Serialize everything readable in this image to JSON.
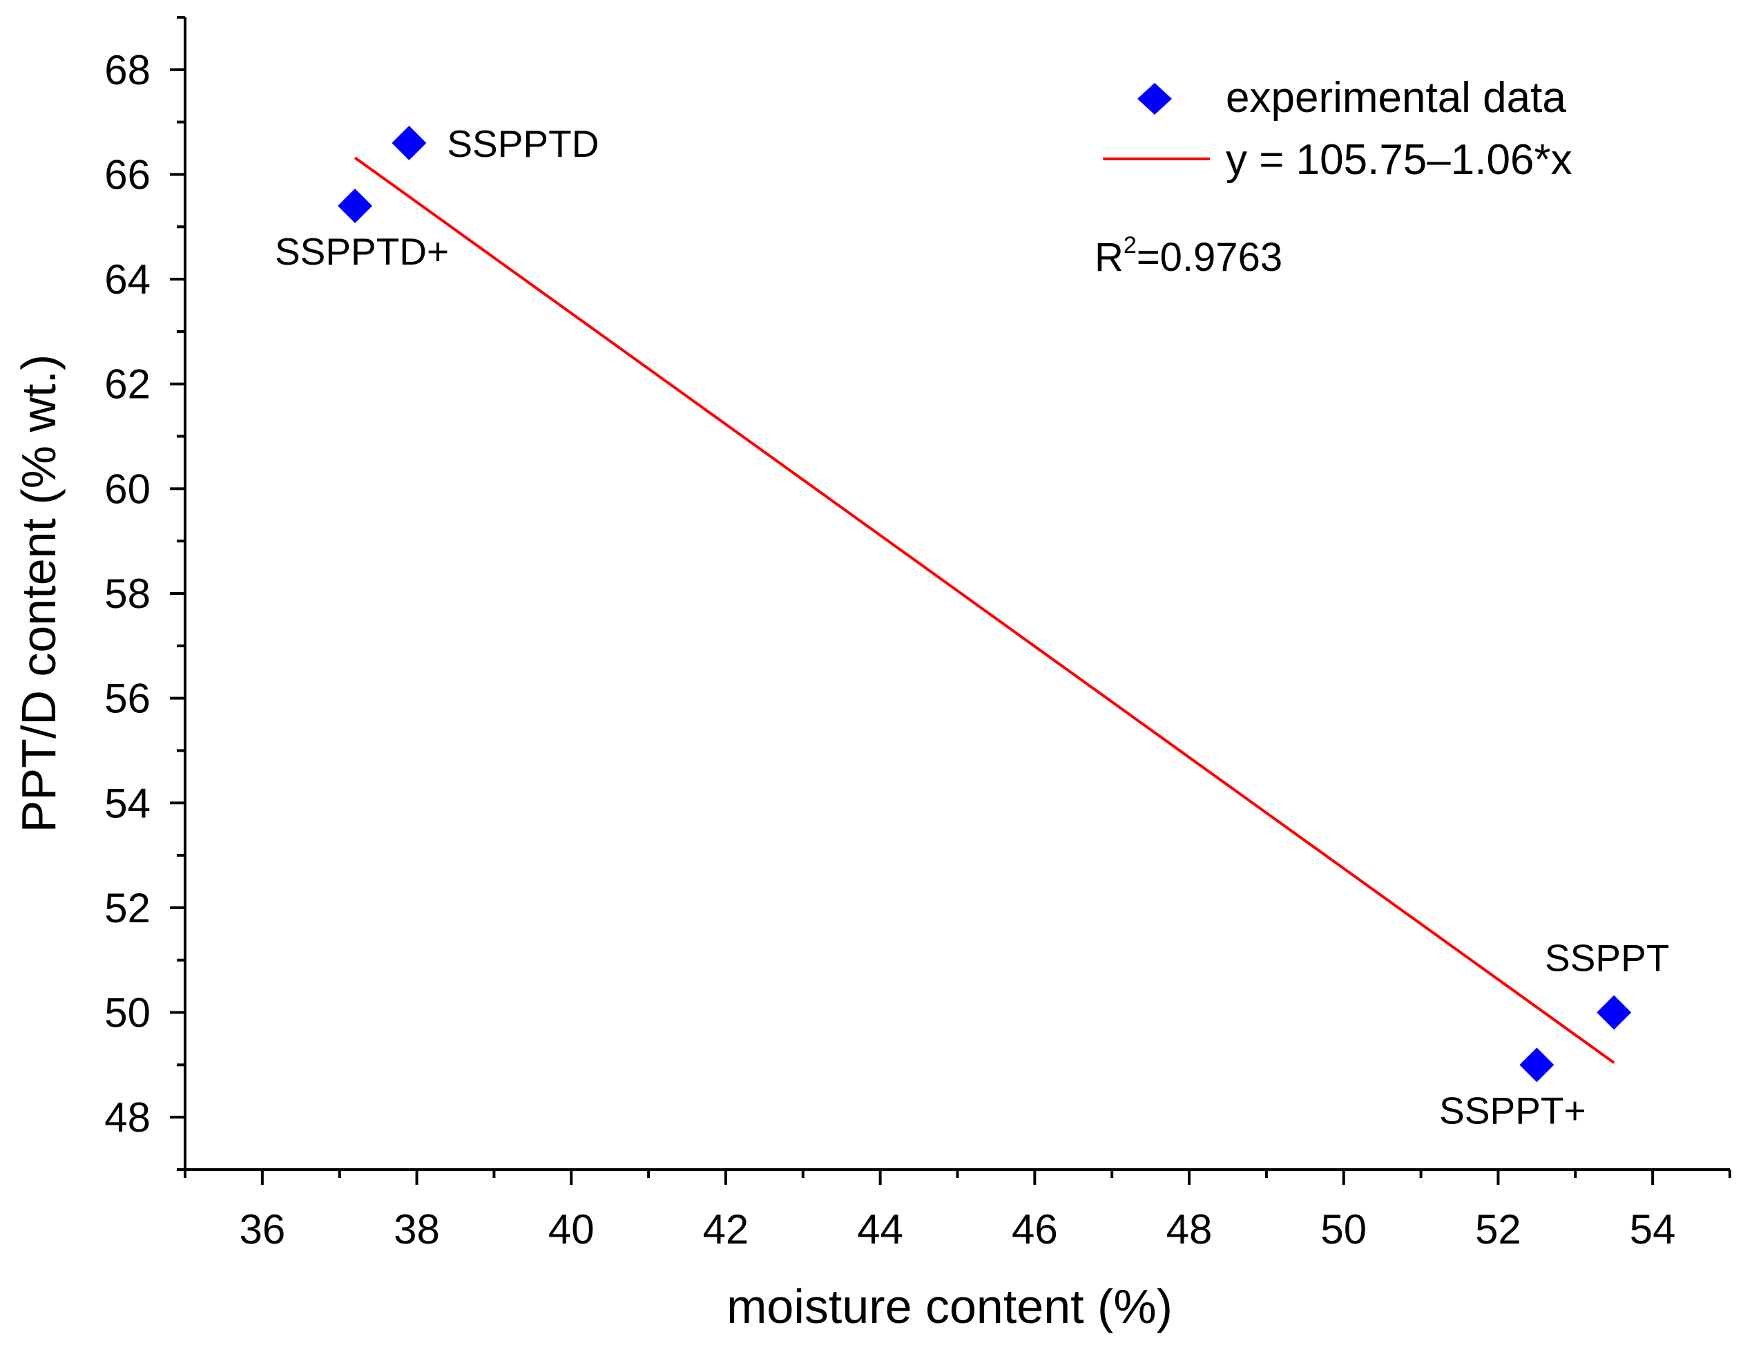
{
  "chart_data": {
    "type": "scatter",
    "title": "",
    "xlabel": "moisture content (%)",
    "ylabel": "PPT/D content (% wt.)",
    "xlim": [
      35,
      55
    ],
    "ylim": [
      47,
      69
    ],
    "x_major_ticks": [
      36,
      38,
      40,
      42,
      44,
      46,
      48,
      50,
      52,
      54
    ],
    "y_major_ticks": [
      48,
      50,
      52,
      54,
      56,
      58,
      60,
      62,
      64,
      66,
      68
    ],
    "grid": false,
    "legend_position": "top-right",
    "series": [
      {
        "name": "experimental data",
        "marker": "diamond",
        "color": "#0000ff",
        "points": [
          {
            "x": 37.9,
            "y": 66.6,
            "label": "SSPPTD"
          },
          {
            "x": 37.2,
            "y": 65.4,
            "label": "SSPPTD+"
          },
          {
            "x": 53.5,
            "y": 50.0,
            "label": "SSPPT"
          },
          {
            "x": 52.5,
            "y": 49.0,
            "label": "SSPPT+"
          }
        ]
      }
    ],
    "fit": {
      "name": "y = 105.75–1.06*x",
      "color": "#ff0000",
      "intercept": 105.75,
      "slope": -1.06,
      "x_range": [
        37.2,
        53.5
      ]
    },
    "annotation": {
      "r_prefix": "R",
      "r_sup": "2",
      "r_value": "=0.9763"
    }
  }
}
